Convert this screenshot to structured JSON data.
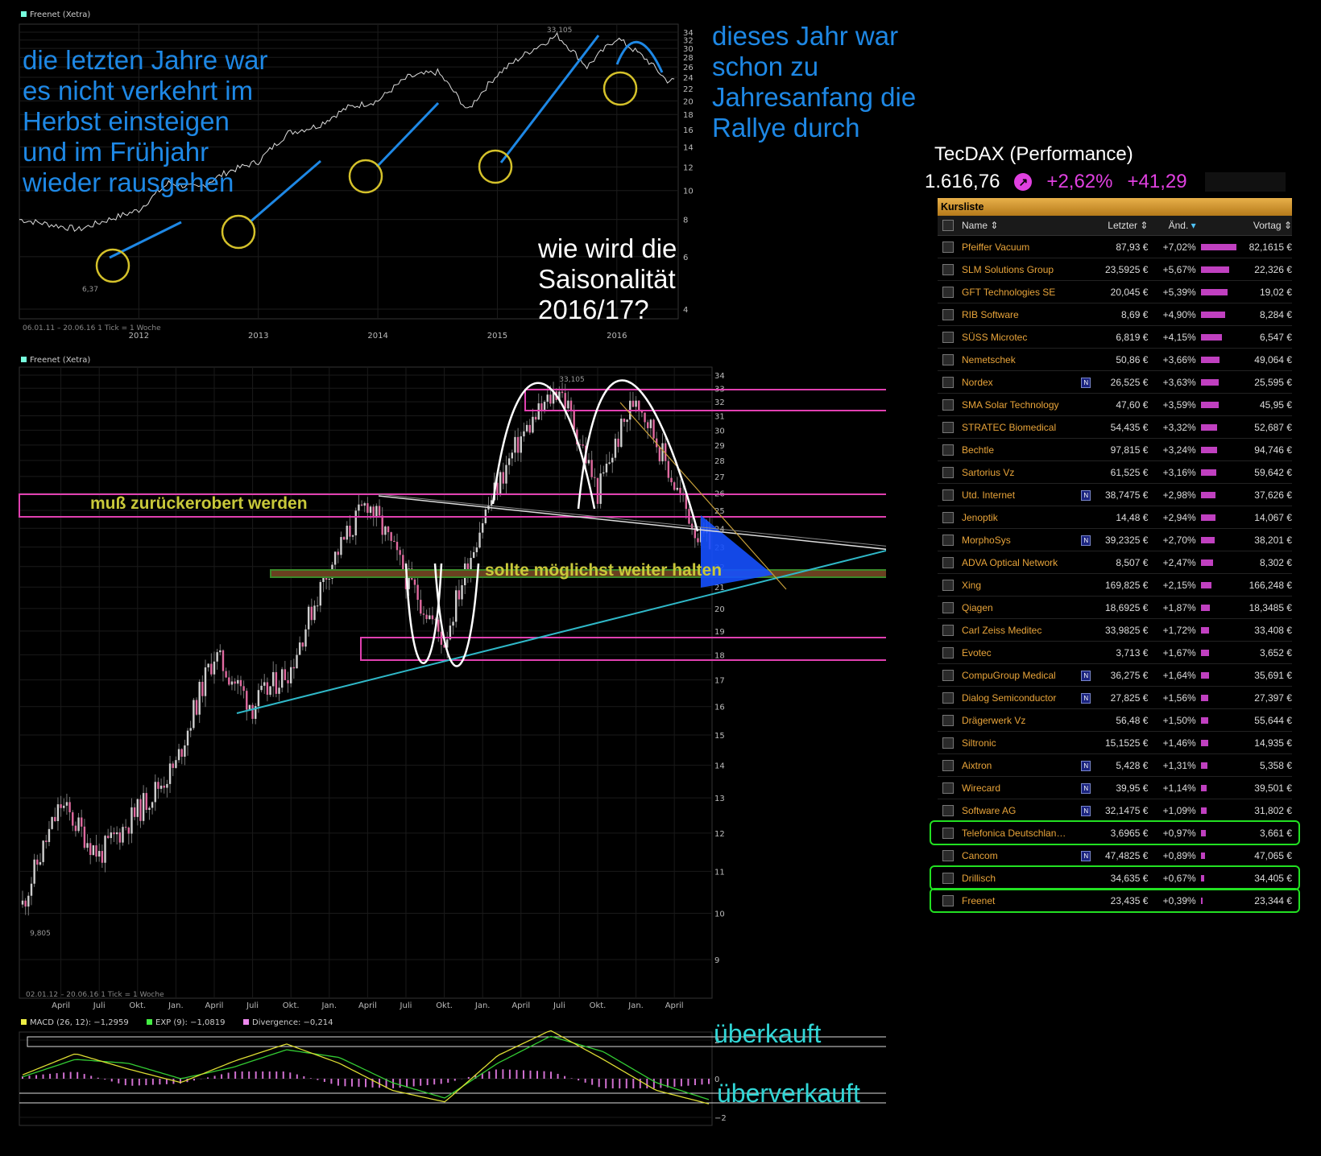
{
  "top_chart": {
    "legend": "Freenet (Xetra)",
    "footer": "06.01.11 – 20.06.16   1 Tick = 1 Woche",
    "high_label": "33,105",
    "low_label": "6,37",
    "x_ticks": [
      "2012",
      "2013",
      "2014",
      "2015",
      "2016"
    ],
    "y_ticks": [
      "4",
      "6",
      "8",
      "10",
      "12",
      "14",
      "16",
      "18",
      "20",
      "22",
      "24",
      "26",
      "28",
      "30",
      "32",
      "34"
    ]
  },
  "main_chart": {
    "legend": "Freenet (Xetra)",
    "footer": "02.01.12 – 20.06.16   1 Tick = 1 Woche",
    "high_label": "33,105",
    "low_label": "9,805",
    "x_ticks": [
      "April",
      "Juli",
      "Okt.",
      "Jan.",
      "April",
      "Juli",
      "Okt.",
      "Jan.",
      "April",
      "Juli",
      "Okt.",
      "Jan.",
      "April",
      "Juli",
      "Okt.",
      "Jan.",
      "April"
    ],
    "y_ticks": [
      "9",
      "10",
      "11",
      "12",
      "13",
      "14",
      "15",
      "16",
      "17",
      "18",
      "19",
      "20",
      "21",
      "22",
      "23",
      "24",
      "25",
      "26",
      "27",
      "28",
      "29",
      "30",
      "31",
      "32",
      "33",
      "34"
    ]
  },
  "macd_chart": {
    "legend_macd": "MACD (26, 12): −1,2959",
    "legend_exp": "EXP (9): −1,0819",
    "legend_div": "Divergence: −0,214",
    "y_ticks": [
      "2",
      "0",
      "−2"
    ]
  },
  "annotations": {
    "left_lines": [
      "die letzten Jahre war",
      "es nicht verkehrt im",
      "Herbst einsteigen",
      "und im Frühjahr",
      "wieder rausgehen"
    ],
    "right_lines": [
      "dieses Jahr war",
      "schon  zu",
      "Jahresanfang die",
      "Rallye durch"
    ],
    "question_lines": [
      "wie wird die",
      "Saisonalität",
      "2016/17?"
    ],
    "resistance": "muß zurückerobert werden",
    "support": "sollte möglichst weiter halten",
    "overbought": "überkauft",
    "oversold": "überverkauft"
  },
  "index": {
    "name": "TecDAX (Performance)",
    "value": "1.616,76",
    "change_pct": "+2,62%",
    "change_abs": "+41,29"
  },
  "kursliste": {
    "title": "Kursliste",
    "columns": {
      "name": "Name",
      "last": "Letzter",
      "change": "Änd.",
      "prev": "Vortag"
    },
    "rows": [
      {
        "name": "Pfeiffer Vacuum",
        "n": false,
        "last": "87,93 €",
        "change": "+7,02%",
        "pct": 7.02,
        "prev": "82,1615 €",
        "hl": false
      },
      {
        "name": "SLM Solutions Group",
        "n": false,
        "last": "23,5925 €",
        "change": "+5,67%",
        "pct": 5.67,
        "prev": "22,326 €",
        "hl": false
      },
      {
        "name": "GFT Technologies SE",
        "n": false,
        "last": "20,045 €",
        "change": "+5,39%",
        "pct": 5.39,
        "prev": "19,02 €",
        "hl": false
      },
      {
        "name": "RIB Software",
        "n": false,
        "last": "8,69 €",
        "change": "+4,90%",
        "pct": 4.9,
        "prev": "8,284 €",
        "hl": false
      },
      {
        "name": "SÜSS Microtec",
        "n": false,
        "last": "6,819 €",
        "change": "+4,15%",
        "pct": 4.15,
        "prev": "6,547 €",
        "hl": false
      },
      {
        "name": "Nemetschek",
        "n": false,
        "last": "50,86 €",
        "change": "+3,66%",
        "pct": 3.66,
        "prev": "49,064 €",
        "hl": false
      },
      {
        "name": "Nordex",
        "n": true,
        "last": "26,525 €",
        "change": "+3,63%",
        "pct": 3.63,
        "prev": "25,595 €",
        "hl": false
      },
      {
        "name": "SMA Solar Technology",
        "n": false,
        "last": "47,60 €",
        "change": "+3,59%",
        "pct": 3.59,
        "prev": "45,95 €",
        "hl": false
      },
      {
        "name": "STRATEC Biomedical",
        "n": false,
        "last": "54,435 €",
        "change": "+3,32%",
        "pct": 3.32,
        "prev": "52,687 €",
        "hl": false
      },
      {
        "name": "Bechtle",
        "n": false,
        "last": "97,815 €",
        "change": "+3,24%",
        "pct": 3.24,
        "prev": "94,746 €",
        "hl": false
      },
      {
        "name": "Sartorius Vz",
        "n": false,
        "last": "61,525 €",
        "change": "+3,16%",
        "pct": 3.16,
        "prev": "59,642 €",
        "hl": false
      },
      {
        "name": "Utd. Internet",
        "n": true,
        "last": "38,7475 €",
        "change": "+2,98%",
        "pct": 2.98,
        "prev": "37,626 €",
        "hl": false
      },
      {
        "name": "Jenoptik",
        "n": false,
        "last": "14,48 €",
        "change": "+2,94%",
        "pct": 2.94,
        "prev": "14,067 €",
        "hl": false
      },
      {
        "name": "MorphoSys",
        "n": true,
        "last": "39,2325 €",
        "change": "+2,70%",
        "pct": 2.7,
        "prev": "38,201 €",
        "hl": false
      },
      {
        "name": "ADVA Optical Network",
        "n": false,
        "last": "8,507 €",
        "change": "+2,47%",
        "pct": 2.47,
        "prev": "8,302 €",
        "hl": false
      },
      {
        "name": "Xing",
        "n": false,
        "last": "169,825 €",
        "change": "+2,15%",
        "pct": 2.15,
        "prev": "166,248 €",
        "hl": false
      },
      {
        "name": "Qiagen",
        "n": false,
        "last": "18,6925 €",
        "change": "+1,87%",
        "pct": 1.87,
        "prev": "18,3485 €",
        "hl": false
      },
      {
        "name": "Carl Zeiss Meditec",
        "n": false,
        "last": "33,9825 €",
        "change": "+1,72%",
        "pct": 1.72,
        "prev": "33,408 €",
        "hl": false
      },
      {
        "name": "Evotec",
        "n": false,
        "last": "3,713 €",
        "change": "+1,67%",
        "pct": 1.67,
        "prev": "3,652 €",
        "hl": false
      },
      {
        "name": "CompuGroup Medical",
        "n": true,
        "last": "36,275 €",
        "change": "+1,64%",
        "pct": 1.64,
        "prev": "35,691 €",
        "hl": false
      },
      {
        "name": "Dialog Semiconductor",
        "n": true,
        "last": "27,825 €",
        "change": "+1,56%",
        "pct": 1.56,
        "prev": "27,397 €",
        "hl": false
      },
      {
        "name": "Drägerwerk Vz",
        "n": false,
        "last": "56,48 €",
        "change": "+1,50%",
        "pct": 1.5,
        "prev": "55,644 €",
        "hl": false
      },
      {
        "name": "Siltronic",
        "n": false,
        "last": "15,1525 €",
        "change": "+1,46%",
        "pct": 1.46,
        "prev": "14,935 €",
        "hl": false
      },
      {
        "name": "Aixtron",
        "n": true,
        "last": "5,428 €",
        "change": "+1,31%",
        "pct": 1.31,
        "prev": "5,358 €",
        "hl": false
      },
      {
        "name": "Wirecard",
        "n": true,
        "last": "39,95 €",
        "change": "+1,14%",
        "pct": 1.14,
        "prev": "39,501 €",
        "hl": false
      },
      {
        "name": "Software AG",
        "n": true,
        "last": "32,1475 €",
        "change": "+1,09%",
        "pct": 1.09,
        "prev": "31,802 €",
        "hl": false
      },
      {
        "name": "Telefonica Deutschlan…",
        "n": false,
        "last": "3,6965 €",
        "change": "+0,97%",
        "pct": 0.97,
        "prev": "3,661 €",
        "hl": true
      },
      {
        "name": "Cancom",
        "n": true,
        "last": "47,4825 €",
        "change": "+0,89%",
        "pct": 0.89,
        "prev": "47,065 €",
        "hl": false
      },
      {
        "name": "Drillisch",
        "n": false,
        "last": "34,635 €",
        "change": "+0,67%",
        "pct": 0.67,
        "prev": "34,405 €",
        "hl": true
      },
      {
        "name": "Freenet",
        "n": false,
        "last": "23,435 €",
        "change": "+0,39%",
        "pct": 0.39,
        "prev": "23,344 €",
        "hl": true
      }
    ]
  },
  "chart_data": [
    {
      "type": "line",
      "title": "Freenet (Xetra)",
      "period": "06.01.11 – 20.06.16",
      "x": [
        "2011-01",
        "2011-07",
        "2012-01",
        "2012-04",
        "2012-07",
        "2012-10",
        "2013-01",
        "2013-04",
        "2013-07",
        "2013-10",
        "2014-01",
        "2014-04",
        "2014-07",
        "2014-10",
        "2015-01",
        "2015-04",
        "2015-07",
        "2015-10",
        "2016-01",
        "2016-04",
        "2016-06"
      ],
      "values": [
        8.0,
        7.4,
        8.6,
        10.6,
        10.2,
        11.6,
        12.5,
        15.6,
        16.5,
        19.0,
        20.0,
        24.0,
        25.0,
        18.5,
        24.5,
        29.0,
        33.1,
        26.0,
        32.5,
        27.5,
        23.4
      ],
      "ylim": [
        4,
        34
      ],
      "ylog": true
    },
    {
      "type": "candlestick",
      "title": "Freenet (Xetra)",
      "period": "02.01.12 – 20.06.16",
      "x": [
        "2012-01",
        "2012-04",
        "2012-07",
        "2012-10",
        "2013-01",
        "2013-04",
        "2013-07",
        "2013-10",
        "2014-01",
        "2014-04",
        "2014-07",
        "2014-10",
        "2015-01",
        "2015-04",
        "2015-07",
        "2015-10",
        "2016-01",
        "2016-04",
        "2016-06"
      ],
      "values": [
        10.2,
        12.8,
        11.4,
        12.6,
        14.0,
        18.0,
        16.0,
        17.5,
        22.0,
        25.5,
        21.5,
        18.5,
        24.5,
        29.5,
        33.1,
        26.0,
        32.5,
        26.5,
        23.4
      ],
      "ylim": [
        9,
        34
      ],
      "ylog": true
    },
    {
      "type": "line",
      "title": "MACD",
      "series": [
        {
          "name": "MACD (26, 12)",
          "values": [
            0.2,
            1.3,
            0.5,
            -0.2,
            0.9,
            1.8,
            0.8,
            -0.6,
            -1.2,
            1.2,
            2.5,
            1.0,
            -0.6,
            -1.3
          ]
        },
        {
          "name": "EXP (9)",
          "values": [
            0.1,
            1.0,
            0.8,
            0.0,
            0.6,
            1.5,
            1.1,
            -0.2,
            -1.0,
            0.8,
            2.2,
            1.4,
            -0.2,
            -1.08
          ]
        }
      ],
      "ylim": [
        -2,
        2
      ]
    }
  ]
}
